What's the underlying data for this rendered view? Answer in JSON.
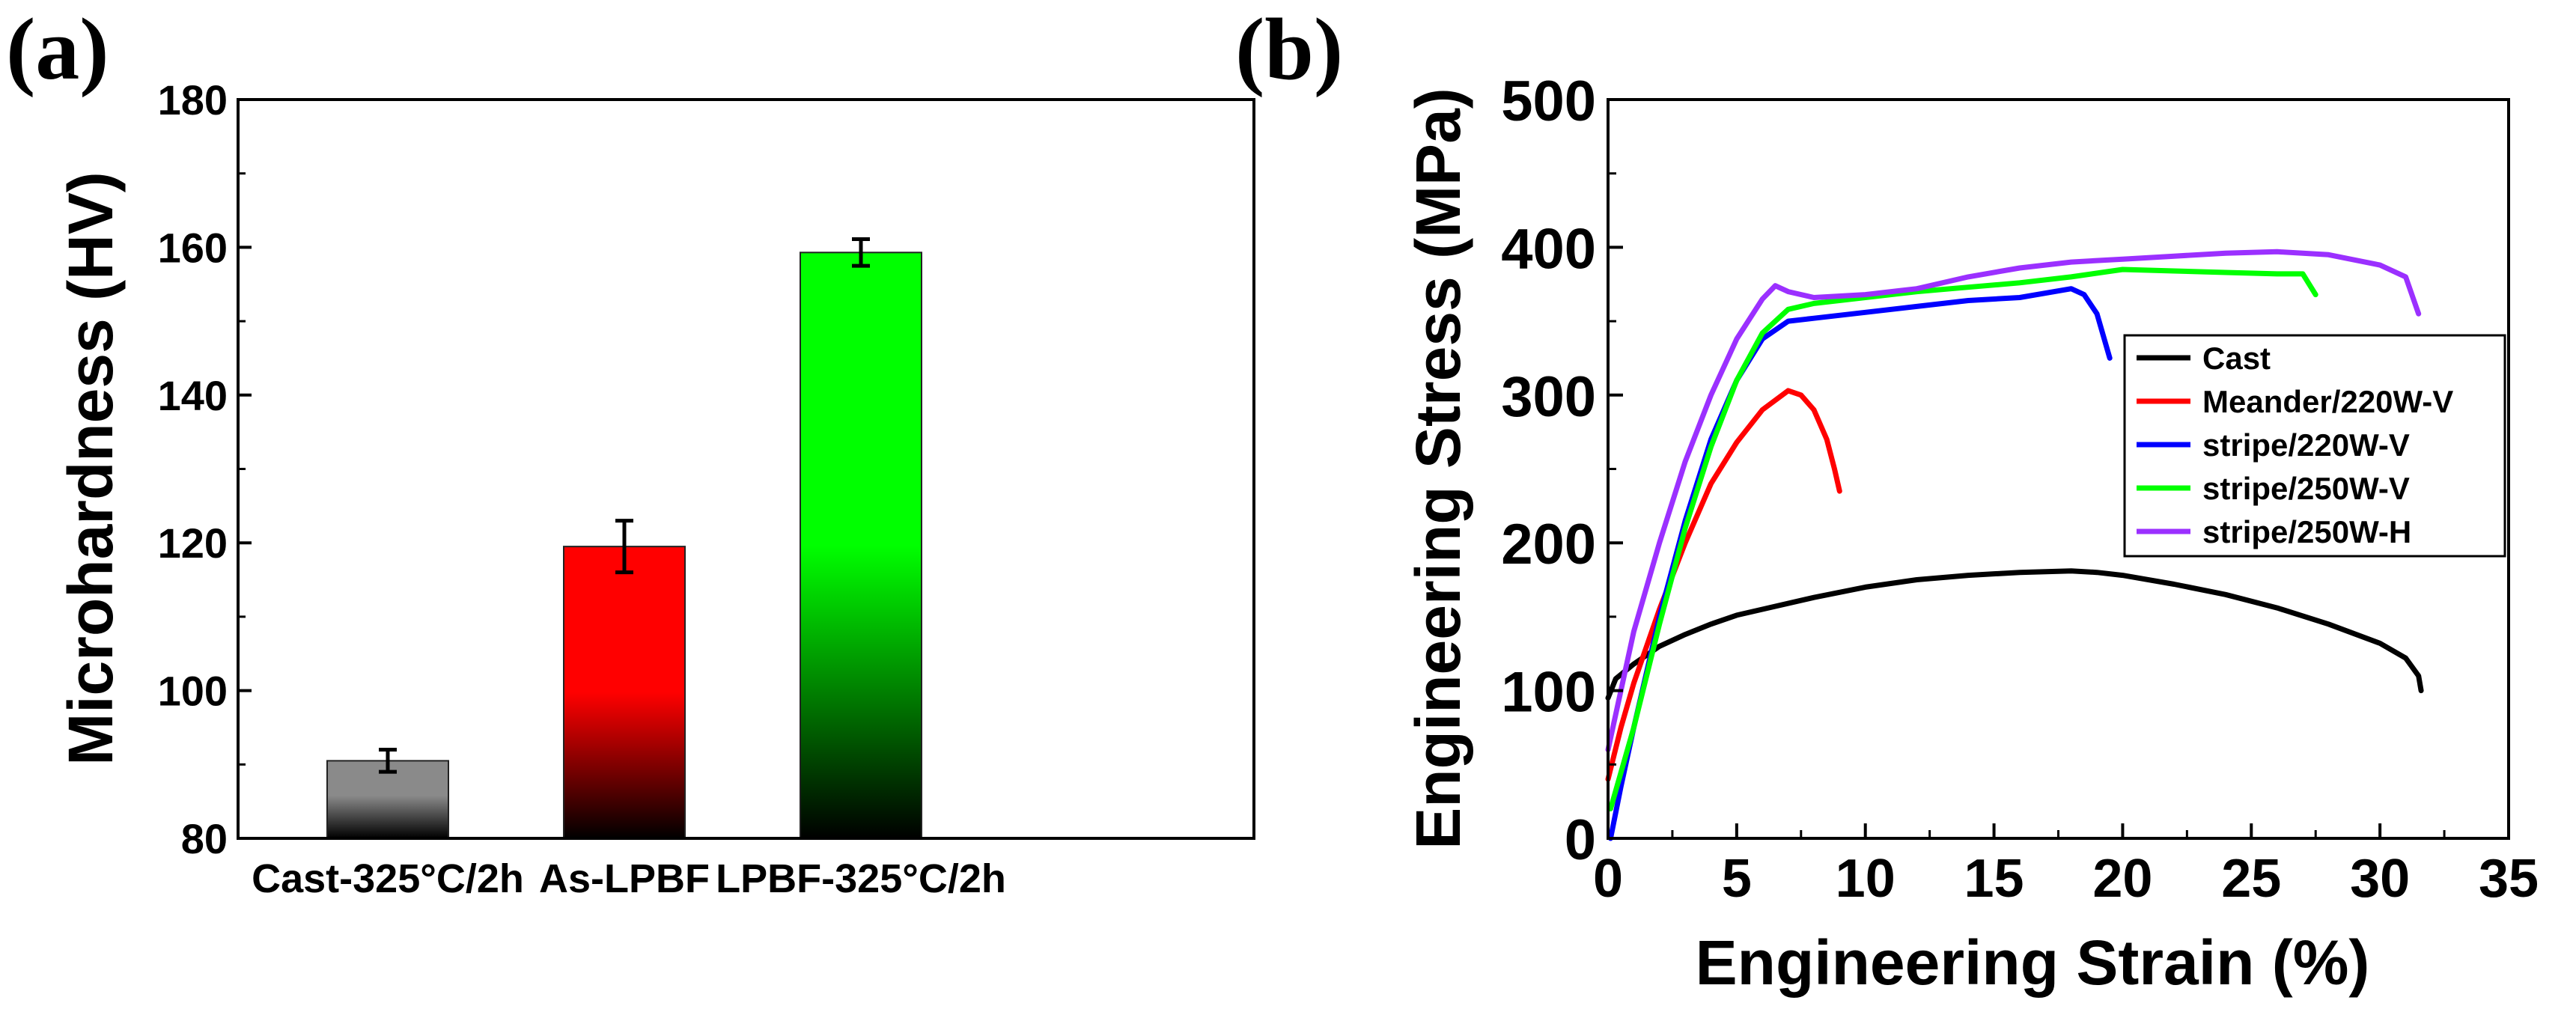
{
  "chart_data": [
    {
      "panel_label": "(a)",
      "type": "bar",
      "categories": [
        "Cast-325°C/2h",
        "As-LPBF",
        "LPBF-325°C/2h"
      ],
      "values": [
        90.5,
        119.5,
        159.3
      ],
      "errors": [
        1.5,
        3.5,
        1.8
      ],
      "colors": [
        "#8a8a8a",
        "#ff0000",
        "#00ff00"
      ],
      "ylabel": "Microhardness (HV)",
      "xlabel": "",
      "ylim": [
        80,
        180
      ],
      "yticks": [
        "80",
        "100",
        "120",
        "140",
        "160",
        "180"
      ]
    },
    {
      "panel_label": "(b)",
      "type": "line",
      "xlabel": "Engineering Strain (%)",
      "ylabel": "Engineering Stress (MPa)",
      "xlim": [
        0,
        35
      ],
      "ylim": [
        0,
        500
      ],
      "xticks": [
        "0",
        "5",
        "10",
        "15",
        "20",
        "25",
        "30",
        "35"
      ],
      "yticks": [
        "0",
        "100",
        "200",
        "300",
        "400",
        "500"
      ],
      "legend_position": "center-right",
      "series": [
        {
          "name": "Cast",
          "color": "#000000",
          "x": [
            0,
            0.3,
            1,
            2,
            3,
            4,
            5,
            6,
            8,
            10,
            12,
            14,
            16,
            18,
            19,
            20,
            22,
            24,
            26,
            28,
            30,
            31,
            31.5,
            31.6
          ],
          "y": [
            95,
            108,
            118,
            130,
            138,
            145,
            151,
            155,
            163,
            170,
            175,
            178,
            180,
            181,
            180,
            178,
            172,
            165,
            156,
            145,
            132,
            122,
            110,
            100
          ]
        },
        {
          "name": "Meander/220W-V",
          "color": "#ff0000",
          "x": [
            0,
            0.5,
            1,
            2,
            3,
            4,
            5,
            6,
            7,
            7.5,
            8,
            8.5,
            8.8,
            9
          ],
          "y": [
            40,
            75,
            105,
            155,
            200,
            240,
            268,
            290,
            303,
            300,
            290,
            270,
            250,
            235
          ]
        },
        {
          "name": "stripe/220W-V",
          "color": "#0000ff",
          "x": [
            0.1,
            0.5,
            1,
            2,
            3,
            4,
            5,
            6,
            7,
            8,
            10,
            12,
            14,
            16,
            18,
            18.5,
            19,
            19.5
          ],
          "y": [
            0,
            35,
            75,
            150,
            215,
            270,
            310,
            338,
            350,
            352,
            356,
            360,
            364,
            366,
            372,
            368,
            355,
            325
          ]
        },
        {
          "name": "stripe/250W-V",
          "color": "#00ff00",
          "x": [
            0.1,
            1,
            2,
            3,
            4,
            5,
            6,
            7,
            8,
            10,
            12,
            14,
            16,
            18,
            20,
            22,
            24,
            26,
            27,
            27.5
          ],
          "y": [
            20,
            75,
            145,
            210,
            265,
            310,
            342,
            358,
            362,
            366,
            370,
            373,
            376,
            380,
            385,
            384,
            383,
            382,
            382,
            368
          ]
        },
        {
          "name": "stripe/250W-H",
          "color": "#9b30ff",
          "x": [
            0,
            0.5,
            1,
            2,
            3,
            4,
            5,
            6,
            6.5,
            7,
            8,
            10,
            12,
            14,
            16,
            18,
            20,
            22,
            24,
            26,
            28,
            30,
            31,
            31.5
          ],
          "y": [
            60,
            100,
            140,
            200,
            255,
            300,
            338,
            365,
            374,
            370,
            366,
            368,
            372,
            380,
            386,
            390,
            392,
            394,
            396,
            397,
            395,
            388,
            380,
            355
          ]
        }
      ]
    }
  ]
}
